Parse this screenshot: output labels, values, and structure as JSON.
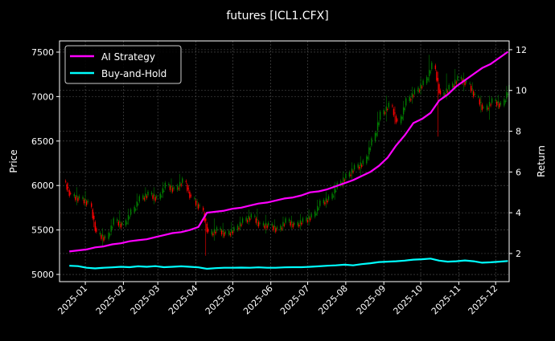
{
  "chart_data": {
    "type": "candlestick+line",
    "title": "futures [ICL1.CFX]",
    "ylabel": "Price",
    "ylabel_right": "Return",
    "xlim": [
      "2024-12-11",
      "2025-12-12"
    ],
    "ylim": [
      4919,
      7626
    ],
    "ylim_right": [
      0.62,
      12.43
    ],
    "grid": true,
    "legend_position": "top-left",
    "x_ticks": [
      "2025-01",
      "2025-02",
      "2025-03",
      "2025-04",
      "2025-05",
      "2025-06",
      "2025-07",
      "2025-08",
      "2025-09",
      "2025-10",
      "2025-11",
      "2025-12"
    ],
    "y_ticks": [
      5000,
      5500,
      6000,
      6500,
      7000,
      7500
    ],
    "y_ticks_right": [
      2,
      4,
      6,
      8,
      10,
      12
    ],
    "colors": {
      "up": "#008000",
      "down": "#ff0000",
      "ai": "#ff00ff",
      "bh": "#00ffff",
      "grid": "#555555"
    },
    "candles": {
      "week_start": "2024-12-16",
      "open": [
        6050,
        5880,
        5850,
        5800,
        5450,
        5400,
        5600,
        5550,
        5700,
        5850,
        5900,
        5850,
        6000,
        5950,
        6050,
        5850,
        5750,
        5450,
        5500,
        5450,
        5500,
        5600,
        5650,
        5550,
        5550,
        5500,
        5600,
        5550,
        5600,
        5650,
        5800,
        5850,
        6000,
        6100,
        6200,
        6250,
        6500,
        6800,
        6900,
        6700,
        6950,
        7050,
        7150,
        7350,
        7000,
        7100,
        7200,
        7150,
        7000,
        6850,
        6950,
        6900
      ],
      "close": [
        5880,
        5850,
        5800,
        5450,
        5400,
        5600,
        5550,
        5700,
        5850,
        5900,
        5850,
        6000,
        5950,
        6050,
        5850,
        5750,
        5450,
        5500,
        5450,
        5500,
        5600,
        5650,
        5550,
        5550,
        5500,
        5600,
        5550,
        5600,
        5650,
        5800,
        5850,
        6000,
        6100,
        6200,
        6250,
        6500,
        6800,
        6900,
        6700,
        6950,
        7050,
        7150,
        7350,
        7000,
        7100,
        7200,
        7150,
        7000,
        6850,
        6950,
        6900,
        7100
      ],
      "high": [
        6080,
        5950,
        5920,
        5820,
        5500,
        5650,
        5700,
        5750,
        5920,
        5950,
        5960,
        6050,
        6060,
        6120,
        6060,
        5860,
        5780,
        5600,
        5560,
        5560,
        5640,
        5700,
        5750,
        5620,
        5600,
        5640,
        5640,
        5650,
        5700,
        5850,
        5900,
        6050,
        6150,
        6250,
        6300,
        6550,
        6900,
        7000,
        6950,
        7000,
        7100,
        7200,
        7500,
        7400,
        7250,
        7300,
        7250,
        7200,
        7050,
        7000,
        7000,
        7150
      ],
      "low": [
        5850,
        5780,
        5750,
        5380,
        5300,
        5380,
        5500,
        5520,
        5680,
        5820,
        5780,
        5820,
        5900,
        5920,
        5820,
        5700,
        5080,
        5380,
        5400,
        5420,
        5480,
        5560,
        5500,
        5480,
        5460,
        5470,
        5500,
        5500,
        5550,
        5620,
        5750,
        5800,
        5950,
        6050,
        6100,
        6200,
        6450,
        6700,
        6600,
        6650,
        6900,
        7000,
        7100,
        6400,
        6950,
        7050,
        7050,
        6950,
        6750,
        6720,
        6850,
        6880
      ]
    },
    "series": [
      {
        "name": "AI Strategy",
        "axis": "right",
        "values": [
          2.1,
          2.15,
          2.2,
          2.3,
          2.35,
          2.45,
          2.5,
          2.6,
          2.65,
          2.7,
          2.8,
          2.9,
          3.0,
          3.05,
          3.15,
          3.3,
          4.0,
          4.05,
          4.1,
          4.2,
          4.25,
          4.35,
          4.45,
          4.5,
          4.6,
          4.7,
          4.75,
          4.85,
          5.0,
          5.05,
          5.15,
          5.3,
          5.45,
          5.6,
          5.8,
          6.0,
          6.3,
          6.7,
          7.3,
          7.8,
          8.4,
          8.6,
          8.9,
          9.5,
          9.8,
          10.2,
          10.5,
          10.8,
          11.1,
          11.3,
          11.6,
          11.9
        ]
      },
      {
        "name": "Buy-and-Hold",
        "axis": "right",
        "values": [
          1.4,
          1.38,
          1.3,
          1.27,
          1.3,
          1.32,
          1.35,
          1.33,
          1.37,
          1.35,
          1.38,
          1.33,
          1.35,
          1.37,
          1.35,
          1.32,
          1.25,
          1.28,
          1.3,
          1.3,
          1.31,
          1.3,
          1.32,
          1.3,
          1.3,
          1.32,
          1.33,
          1.33,
          1.35,
          1.37,
          1.4,
          1.42,
          1.45,
          1.42,
          1.48,
          1.52,
          1.58,
          1.6,
          1.62,
          1.65,
          1.7,
          1.72,
          1.75,
          1.65,
          1.6,
          1.62,
          1.66,
          1.62,
          1.55,
          1.57,
          1.6,
          1.63
        ]
      }
    ]
  }
}
